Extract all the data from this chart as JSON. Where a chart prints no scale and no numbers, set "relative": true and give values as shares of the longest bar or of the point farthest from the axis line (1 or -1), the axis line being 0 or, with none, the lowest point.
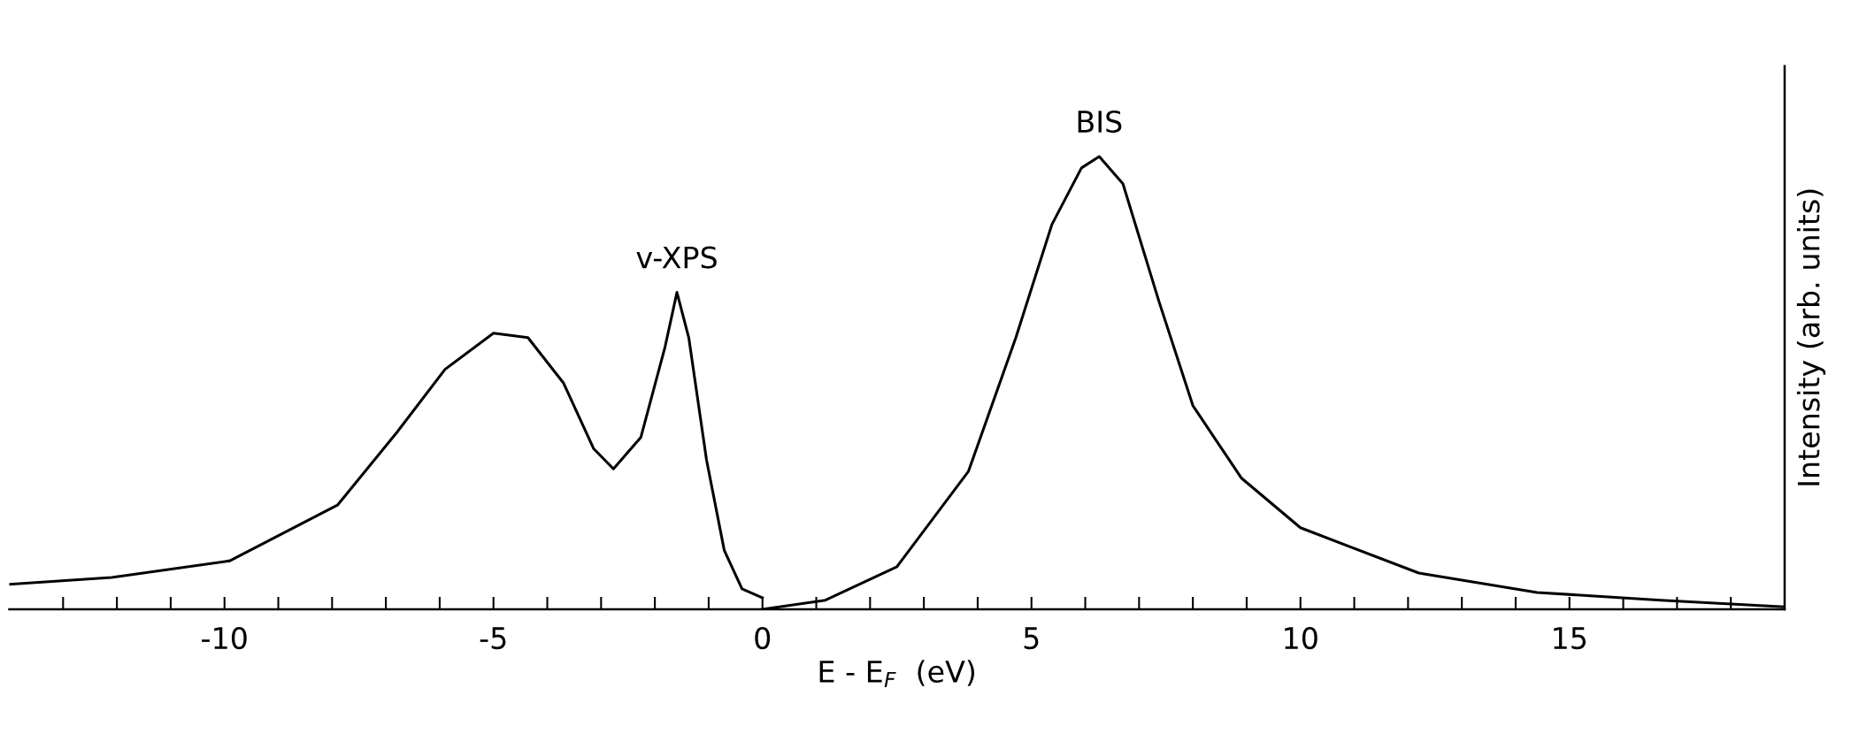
{
  "chart_data": {
    "type": "line",
    "relative": true,
    "xlabel": "E - E$_{F}$  (eV)",
    "ylabel": "Intensity (arb. units)",
    "xlim": [
      -14,
      19
    ],
    "xticks": [
      {
        "value": -13,
        "label": null
      },
      {
        "value": -12,
        "label": null
      },
      {
        "value": -11,
        "label": null
      },
      -10,
      {
        "value": -9,
        "label": null
      },
      {
        "value": -8,
        "label": null
      },
      {
        "value": -7,
        "label": null
      },
      {
        "value": -6,
        "label": null
      },
      -5,
      {
        "value": -4,
        "label": null
      },
      {
        "value": -3,
        "label": null
      },
      {
        "value": -2,
        "label": null
      },
      {
        "value": -1,
        "label": null
      },
      0,
      {
        "value": 1,
        "label": null
      },
      {
        "value": 2,
        "label": null
      },
      {
        "value": 3,
        "label": null
      },
      {
        "value": 4,
        "label": null
      },
      5,
      {
        "value": 6,
        "label": null
      },
      {
        "value": 7,
        "label": null
      },
      {
        "value": 8,
        "label": null
      },
      {
        "value": 9,
        "label": null
      },
      10,
      {
        "value": 11,
        "label": null
      },
      {
        "value": 12,
        "label": null
      },
      {
        "value": 13,
        "label": null
      },
      {
        "value": 14,
        "label": null
      },
      15,
      {
        "value": 16,
        "label": null
      },
      {
        "value": 17,
        "label": null
      },
      {
        "value": 18,
        "label": null
      }
    ],
    "grid": false,
    "legend": false,
    "series": [
      {
        "name": "v-XPS",
        "color": "#000000",
        "x": [
          -14,
          -12.1,
          -9.9,
          -7.9,
          -6.8,
          -5.9,
          -5.0,
          -4.36,
          -3.7,
          -3.14,
          -2.77,
          -2.26,
          -1.81,
          -1.59,
          -1.37,
          -1.04,
          -0.71,
          -0.38,
          0
        ],
        "values": [
          0.055,
          0.07,
          0.107,
          0.23,
          0.39,
          0.53,
          0.61,
          0.6,
          0.5,
          0.355,
          0.31,
          0.38,
          0.58,
          0.7,
          0.6,
          0.33,
          0.13,
          0.045,
          0.025
        ]
      },
      {
        "name": "BIS",
        "color": "#000000",
        "x": [
          0,
          1.17,
          2.5,
          3.83,
          4.71,
          5.38,
          5.93,
          6.26,
          6.7,
          7.37,
          8.0,
          8.9,
          10.0,
          12.2,
          14.4,
          16.7,
          19
        ],
        "values": [
          0,
          0.02,
          0.094,
          0.305,
          0.6,
          0.85,
          0.975,
          1.0,
          0.94,
          0.68,
          0.45,
          0.29,
          0.18,
          0.08,
          0.037,
          0.02,
          0.005
        ]
      }
    ]
  }
}
